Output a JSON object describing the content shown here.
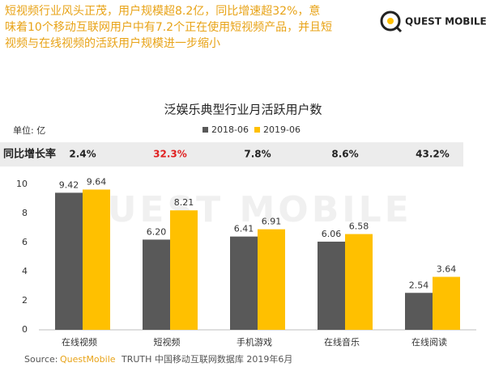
{
  "header": {
    "lines": [
      "短视频行业风头正茂，用户规模超8.2亿，同比增速超32%，意",
      "味着10个移动互联网用户中有7.2个正在使用短视频产品，并且短",
      "视频与在线视频的活跃用户规模进一步缩小"
    ],
    "logo": "QUEST MOBILE"
  },
  "chart_data": {
    "type": "bar",
    "title": "泛娱乐典型行业月活跃用户数",
    "unit": "单位: 亿",
    "watermark": "QUEST MOBILE",
    "categories": [
      "在线视频",
      "短视频",
      "手机游戏",
      "在线音乐",
      "在线阅读"
    ],
    "series": [
      {
        "name": "2018-06",
        "color": "#595959",
        "values": [
          9.42,
          6.2,
          6.41,
          6.06,
          2.54
        ],
        "value_labels": [
          "9.42",
          "6.20",
          "6.41",
          "6.06",
          "2.54"
        ]
      },
      {
        "name": "2019-06",
        "color": "#ffc000",
        "values": [
          9.64,
          8.21,
          6.91,
          6.58,
          3.64
        ]
      }
    ],
    "growth": {
      "label": "同比增长率",
      "value_labels": [
        "2.4%",
        "32.3%",
        "7.8%",
        "8.6%",
        "43.2%"
      ],
      "colors": [
        "#222222",
        "#e02020",
        "#222222",
        "#222222",
        "#222222"
      ]
    },
    "ylim": [
      0,
      10
    ],
    "yticks": [
      0,
      2,
      4,
      6,
      8,
      10
    ],
    "grid": false,
    "source": {
      "label": "Source:",
      "brand": "QuestMobile",
      "text": "TRUTH 中国移动互联网数据库 2019年6月"
    }
  }
}
